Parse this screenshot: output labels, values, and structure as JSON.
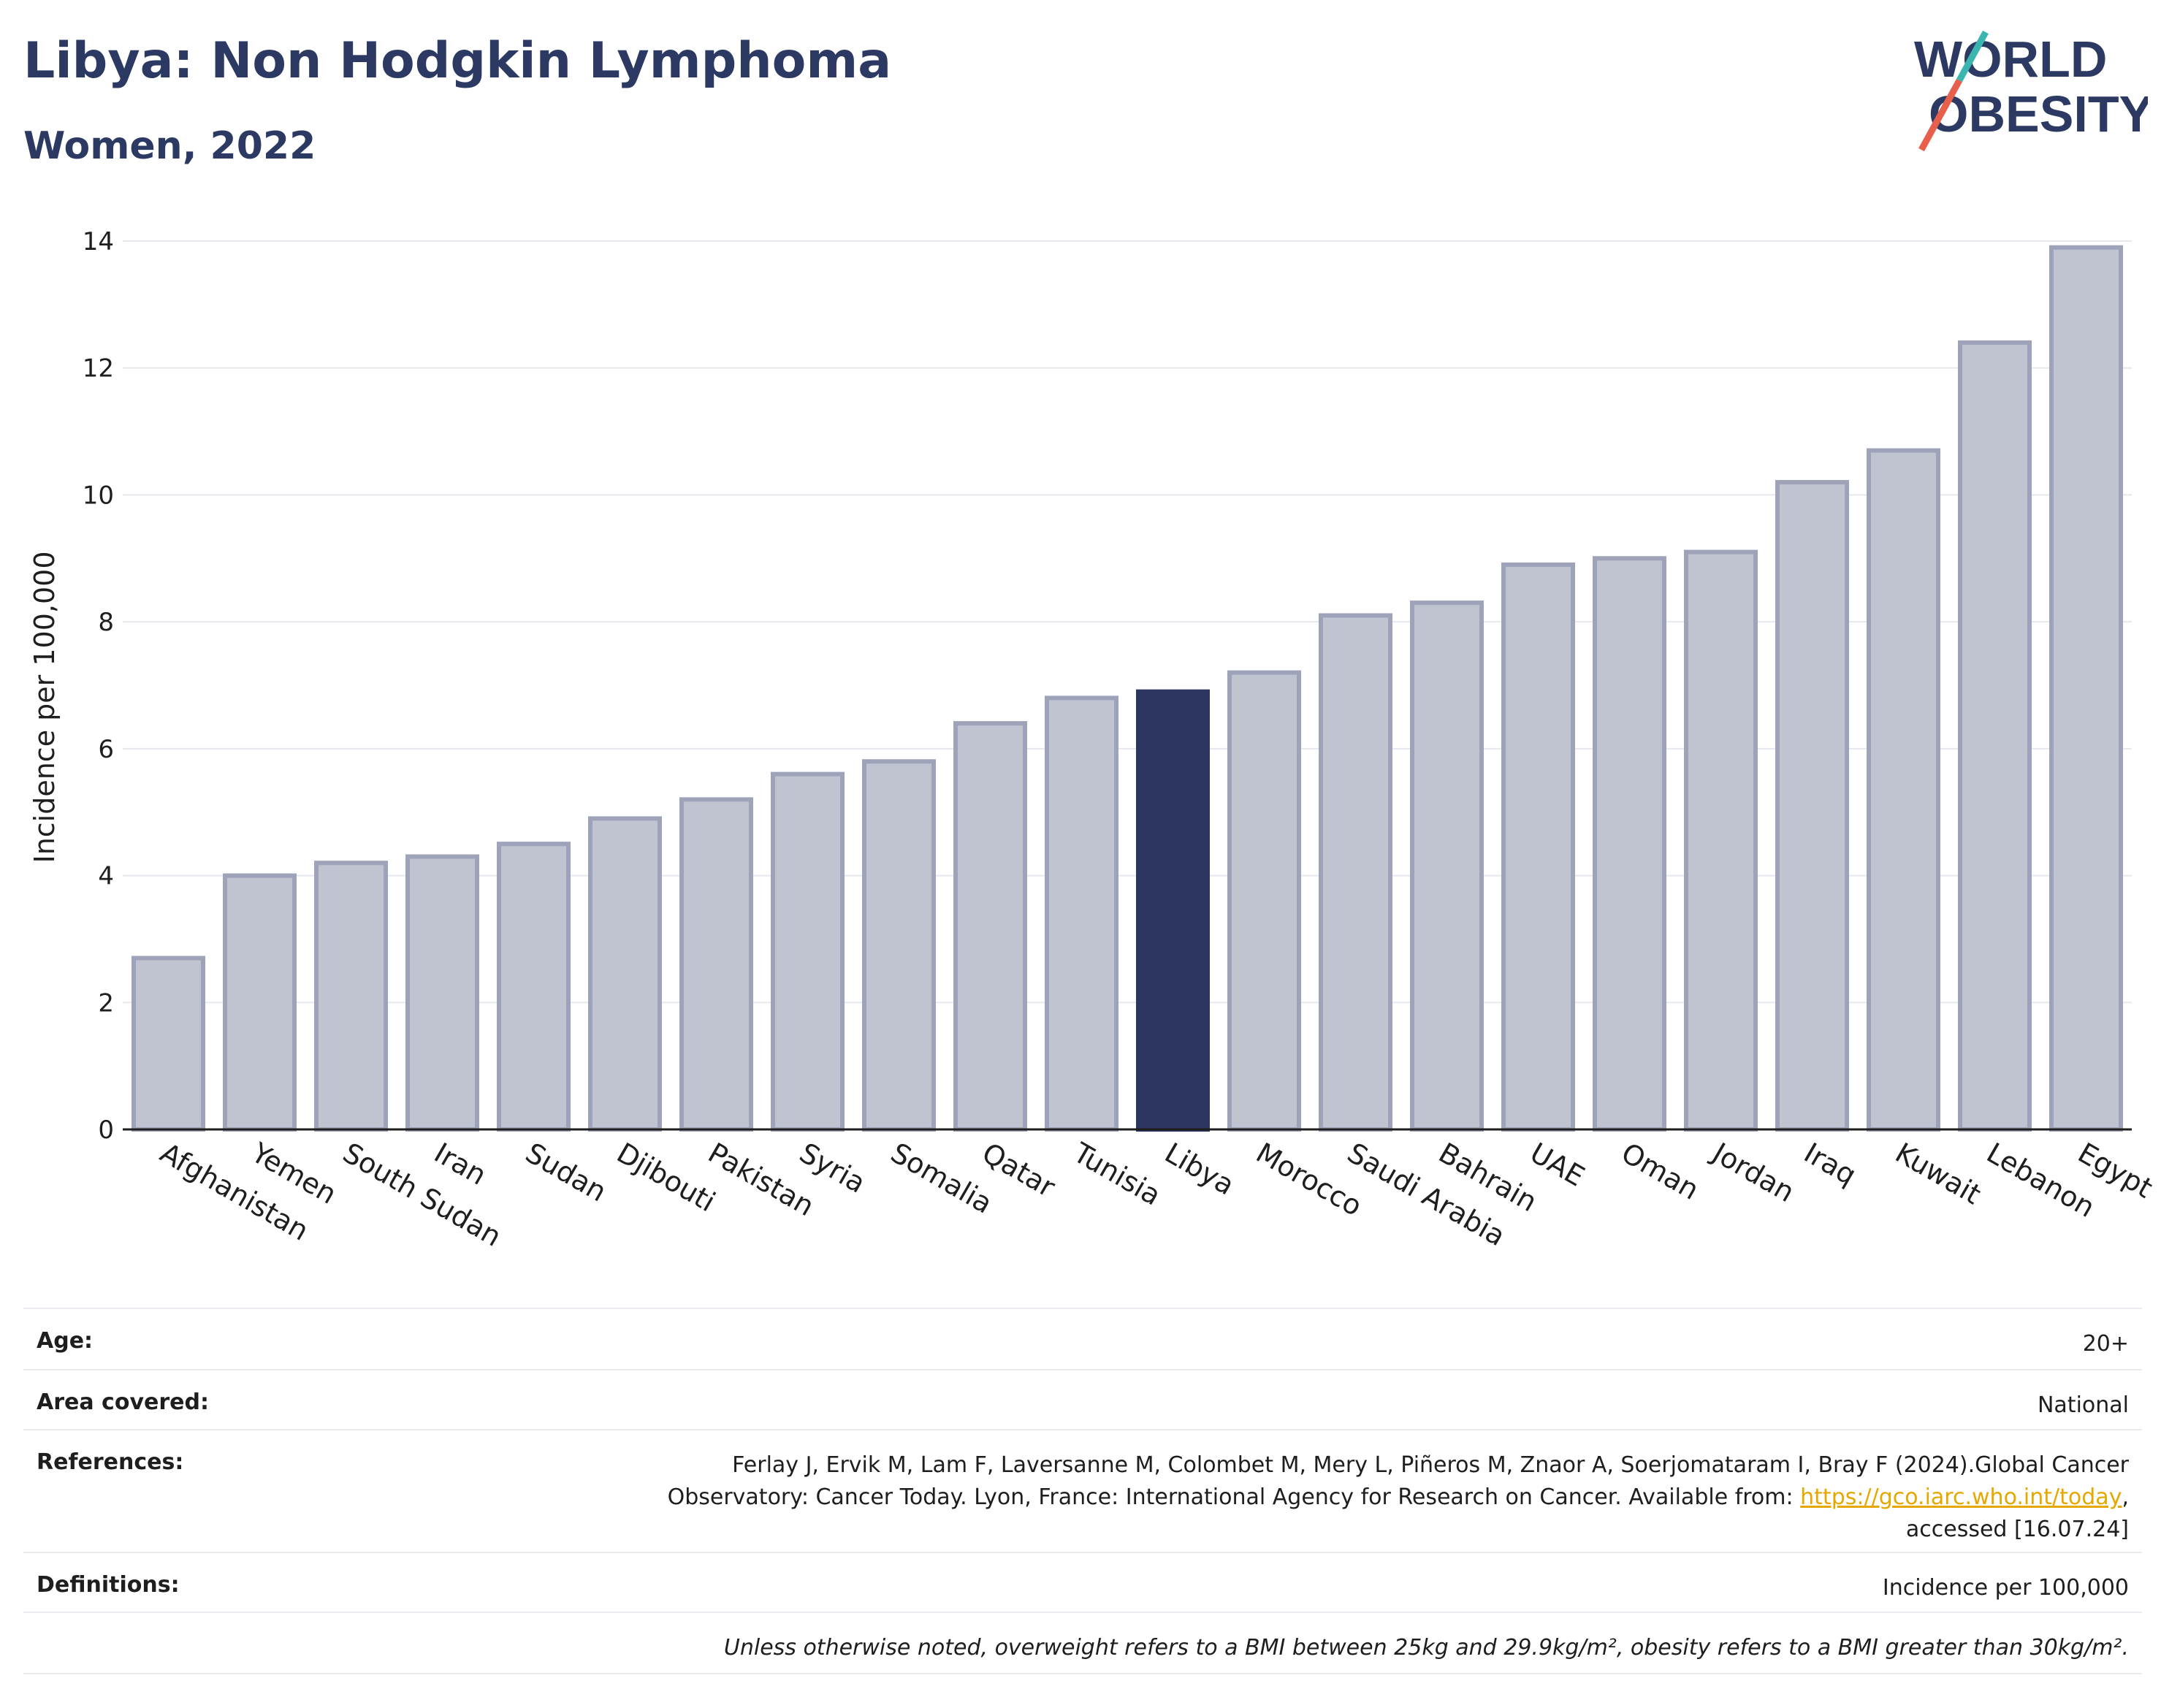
{
  "header": {
    "title": "Libya: Non Hodgkin Lymphoma",
    "subtitle": "Women, 2022"
  },
  "logo": {
    "line1": "WORLD",
    "line2": "OBESITY",
    "colors": {
      "text": "#2c3a63",
      "accent_red": "#e8604c",
      "accent_teal": "#3ab5b0"
    }
  },
  "colors": {
    "bar_fill": "#c0c3d0",
    "bar_stroke": "#9ea3ba",
    "highlight_fill": "#2c3560",
    "grid": "#e6e8ee",
    "axis": "#1e1e1e"
  },
  "chart_data": {
    "type": "bar",
    "ylabel": "Incidence per 100,000",
    "xlabel": "",
    "ylim": [
      0,
      14
    ],
    "yticks": [
      0,
      2,
      4,
      6,
      8,
      10,
      12,
      14
    ],
    "grid": true,
    "highlight": "Libya",
    "categories": [
      "Afghanistan",
      "Yemen",
      "South Sudan",
      "Iran",
      "Sudan",
      "Djibouti",
      "Pakistan",
      "Syria",
      "Somalia",
      "Qatar",
      "Tunisia",
      "Libya",
      "Morocco",
      "Saudi Arabia",
      "Bahrain",
      "UAE",
      "Oman",
      "Jordan",
      "Iraq",
      "Kuwait",
      "Lebanon",
      "Egypt"
    ],
    "values": [
      2.7,
      4.0,
      4.2,
      4.3,
      4.5,
      4.9,
      5.2,
      5.6,
      5.8,
      6.4,
      6.8,
      6.9,
      7.2,
      8.1,
      8.3,
      8.9,
      9.0,
      9.1,
      10.2,
      10.7,
      12.4,
      13.9
    ]
  },
  "meta": {
    "age_label": "Age:",
    "age_value": "20+",
    "area_label": "Area covered:",
    "area_value": "National",
    "references_label": "References:",
    "references_line1": "Ferlay J, Ervik M, Lam F, Laversanne M, Colombet M, Mery L, Piñeros M, Znaor A, Soerjomataram I, Bray F (2024).Global Cancer",
    "references_line2": "Observatory: Cancer Today. Lyon, France: International Agency for Research on Cancer. Available from:",
    "references_link": "https://gco.iarc.who.int/today",
    "references_line3": "accessed [16.07.24]",
    "definitions_label": "Definitions:",
    "definitions_value": "Incidence per 100,000",
    "note": "Unless otherwise noted, overweight refers to a BMI between 25kg and 29.9kg/m², obesity refers to a BMI greater than 30kg/m²."
  }
}
